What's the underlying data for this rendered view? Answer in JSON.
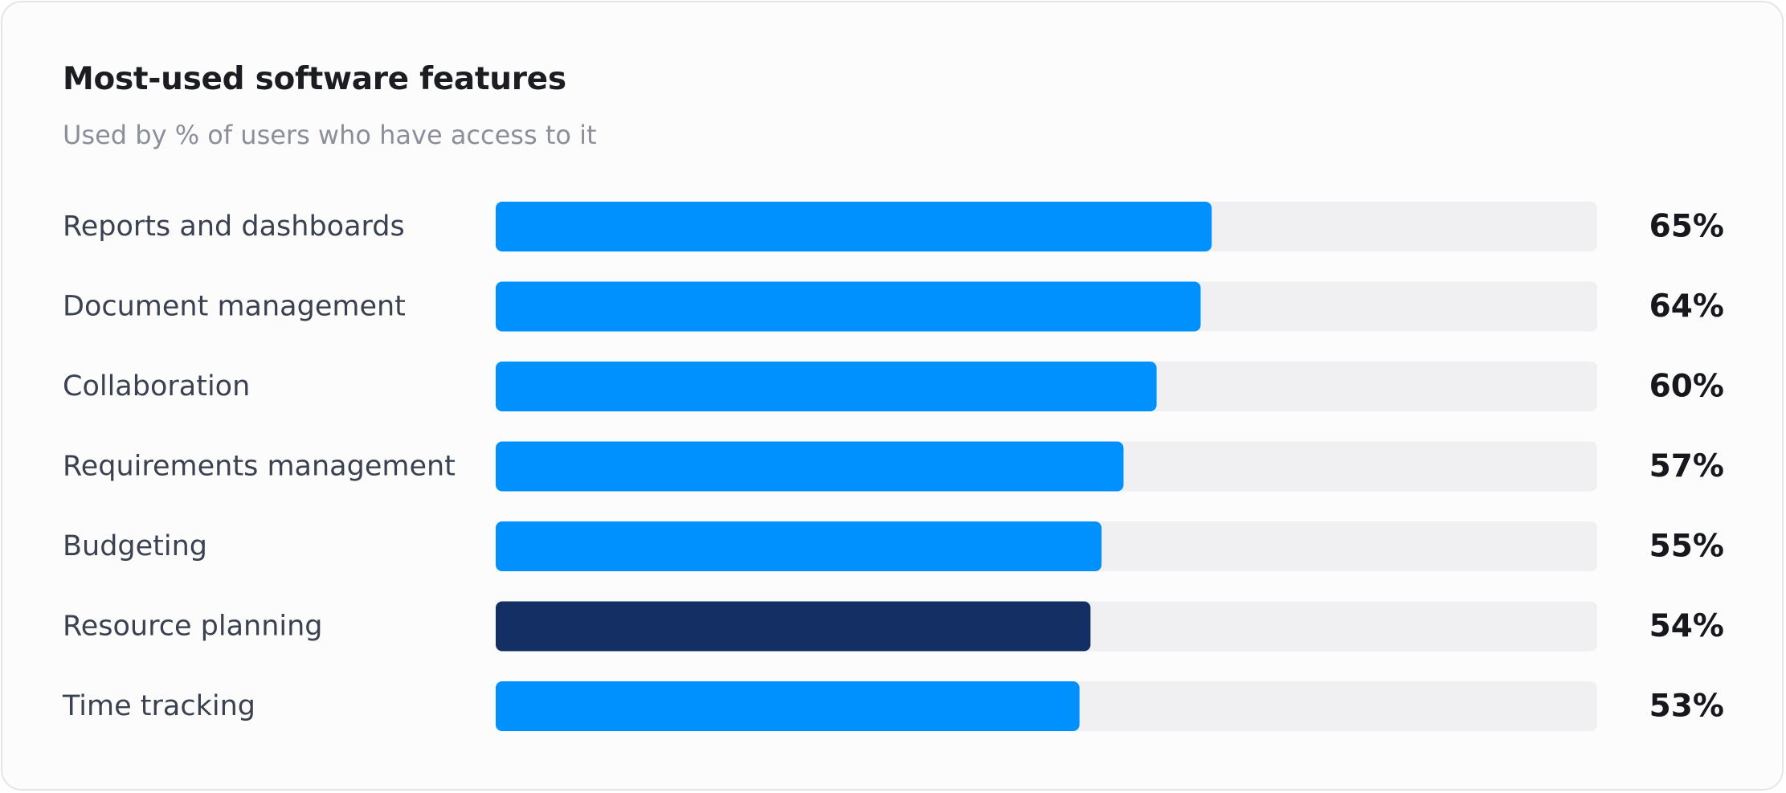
{
  "chart_data": {
    "type": "bar",
    "orientation": "horizontal",
    "title": "Most-used software features",
    "subtitle": "Used by % of users who have access to it",
    "categories": [
      "Reports and dashboards",
      "Document management",
      "Collaboration",
      "Requirements management",
      "Budgeting",
      "Resource planning",
      "Time tracking"
    ],
    "values": [
      65,
      64,
      60,
      57,
      55,
      54,
      53
    ],
    "value_labels": [
      "65%",
      "64%",
      "60%",
      "57%",
      "55%",
      "54%",
      "53%"
    ],
    "unit": "%",
    "xlim": [
      0,
      100
    ],
    "highlight_index": 5,
    "grid": false,
    "legend": "none",
    "colors": {
      "bar": "#0091ff",
      "highlight_bar": "#132f63",
      "track": "#f0f0f2"
    }
  }
}
